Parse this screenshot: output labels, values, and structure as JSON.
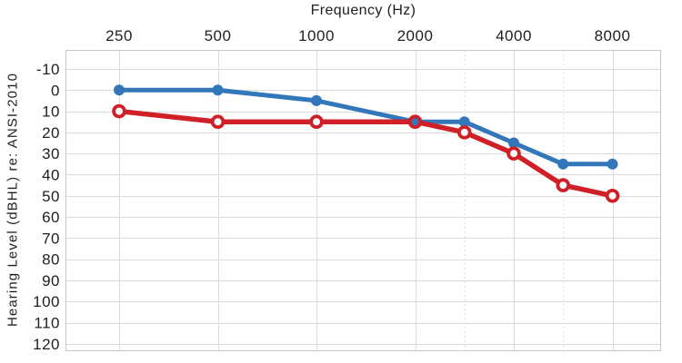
{
  "chart_data": {
    "type": "line",
    "title": "Frequency (Hz)",
    "ylabel": "Hearing Level (dBHL) re: ANSI-2010",
    "x_axis_position": "top",
    "x_scale": "log-octave",
    "x_tick_values": [
      250,
      500,
      1000,
      2000,
      4000,
      8000
    ],
    "x_tick_labels": [
      "250",
      "500",
      "1000",
      "2000",
      "4000",
      "8000"
    ],
    "x_minor_values": [
      3000,
      6000
    ],
    "y_tick_values": [
      -10,
      0,
      10,
      20,
      30,
      40,
      50,
      60,
      70,
      80,
      90,
      100,
      110,
      120
    ],
    "y_tick_labels": [
      "-10",
      "0",
      "10",
      "20",
      "30",
      "40",
      "50",
      "60",
      "70",
      "80",
      "90",
      "100",
      "110",
      "120"
    ],
    "y_axis_inverted": true,
    "ylim": [
      -19,
      123.5
    ],
    "grid": true,
    "frequencies": [
      250,
      500,
      1000,
      2000,
      3000,
      4000,
      6000,
      8000
    ],
    "series": [
      {
        "name": "blue-audiogram-curve",
        "color": "#3377bb",
        "marker": "filled-circle",
        "line_width": 5,
        "values": [
          0,
          0,
          5,
          15,
          15,
          25,
          35,
          35
        ]
      },
      {
        "name": "red-audiogram-curve",
        "color": "#d02027",
        "marker": "open-circle",
        "line_width": 5.5,
        "values": [
          10,
          15,
          15,
          15,
          20,
          30,
          45,
          50
        ]
      }
    ],
    "colors": {
      "grid": "#dcdcdc",
      "minor_grid": "#e0e0e0",
      "border": "#c8c8c8",
      "text": "#1f1f1f",
      "background": "#ffffff"
    }
  }
}
